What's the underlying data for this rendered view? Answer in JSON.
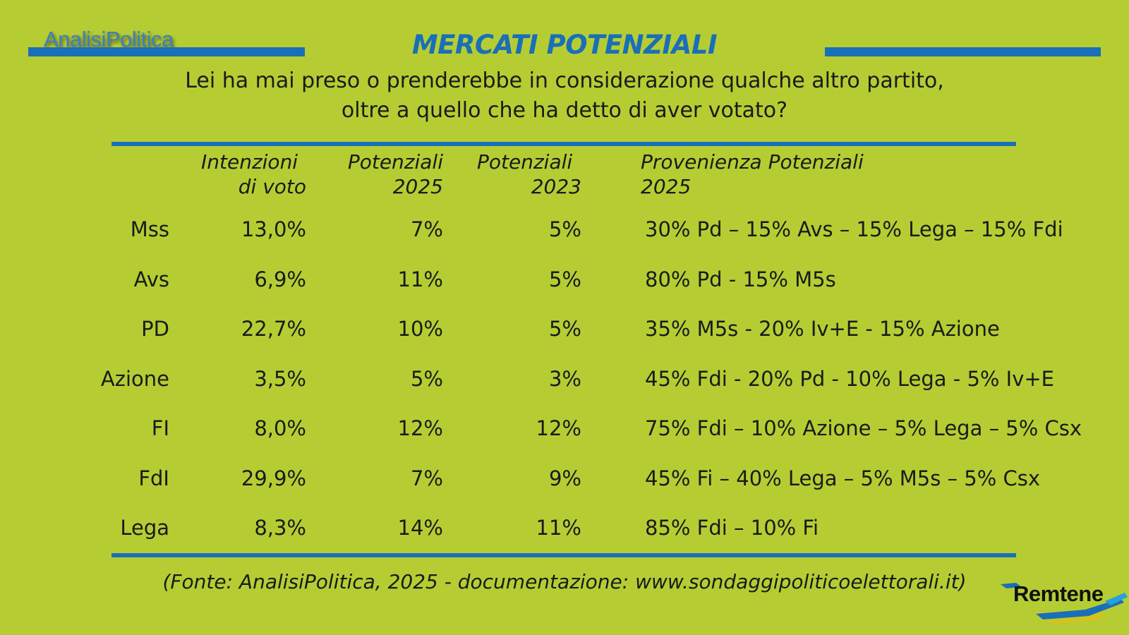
{
  "header": {
    "logo": "AnalisiPolitica",
    "title": "MERCATI POTENZIALI",
    "subtitle_line1": "Lei ha mai preso o prenderebbe in considerazione qualche altro partito,",
    "subtitle_line2": "oltre a quello che ha detto di aver votato?"
  },
  "columns": {
    "intenzioni_l1": "Intenzioni",
    "intenzioni_l2": "di voto",
    "pot2025_l1": "Potenziali",
    "pot2025_l2": "2025",
    "pot2023_l1": "Potenziali",
    "pot2023_l2": "2023",
    "prov_l1": "Provenienza Potenziali",
    "prov_l2": "2025"
  },
  "rows": [
    {
      "party": "Mss",
      "intenzioni": "13,0%",
      "pot2025": "7%",
      "pot2023": "5%",
      "provenienza": "30% Pd – 15% Avs – 15% Lega – 15% Fdi"
    },
    {
      "party": "Avs",
      "intenzioni": "6,9%",
      "pot2025": "11%",
      "pot2023": "5%",
      "provenienza": "80% Pd - 15% M5s"
    },
    {
      "party": "PD",
      "intenzioni": "22,7%",
      "pot2025": "10%",
      "pot2023": "5%",
      "provenienza": "35% M5s - 20% Iv+E - 15% Azione"
    },
    {
      "party": "Azione",
      "intenzioni": "3,5%",
      "pot2025": "5%",
      "pot2023": "3%",
      "provenienza": "45% Fdi - 20% Pd - 10% Lega - 5% Iv+E"
    },
    {
      "party": "FI",
      "intenzioni": "8,0%",
      "pot2025": "12%",
      "pot2023": "12%",
      "provenienza": "75% Fdi – 10% Azione – 5% Lega – 5% Csx"
    },
    {
      "party": "FdI",
      "intenzioni": "29,9%",
      "pot2025": "7%",
      "pot2023": "9%",
      "provenienza": "45% Fi – 40% Lega – 5% M5s – 5% Csx"
    },
    {
      "party": "Lega",
      "intenzioni": "8,3%",
      "pot2025": "14%",
      "pot2023": "11%",
      "provenienza": "85% Fdi – 10% Fi"
    }
  ],
  "footer": {
    "source": "(Fonte: AnalisiPolitica, 2025 - documentazione: www.sondaggipoliticoelettorali.it)",
    "brand": "Remtene"
  },
  "colors": {
    "background": "#b5cd33",
    "accent_blue": "#1a6fb8"
  }
}
